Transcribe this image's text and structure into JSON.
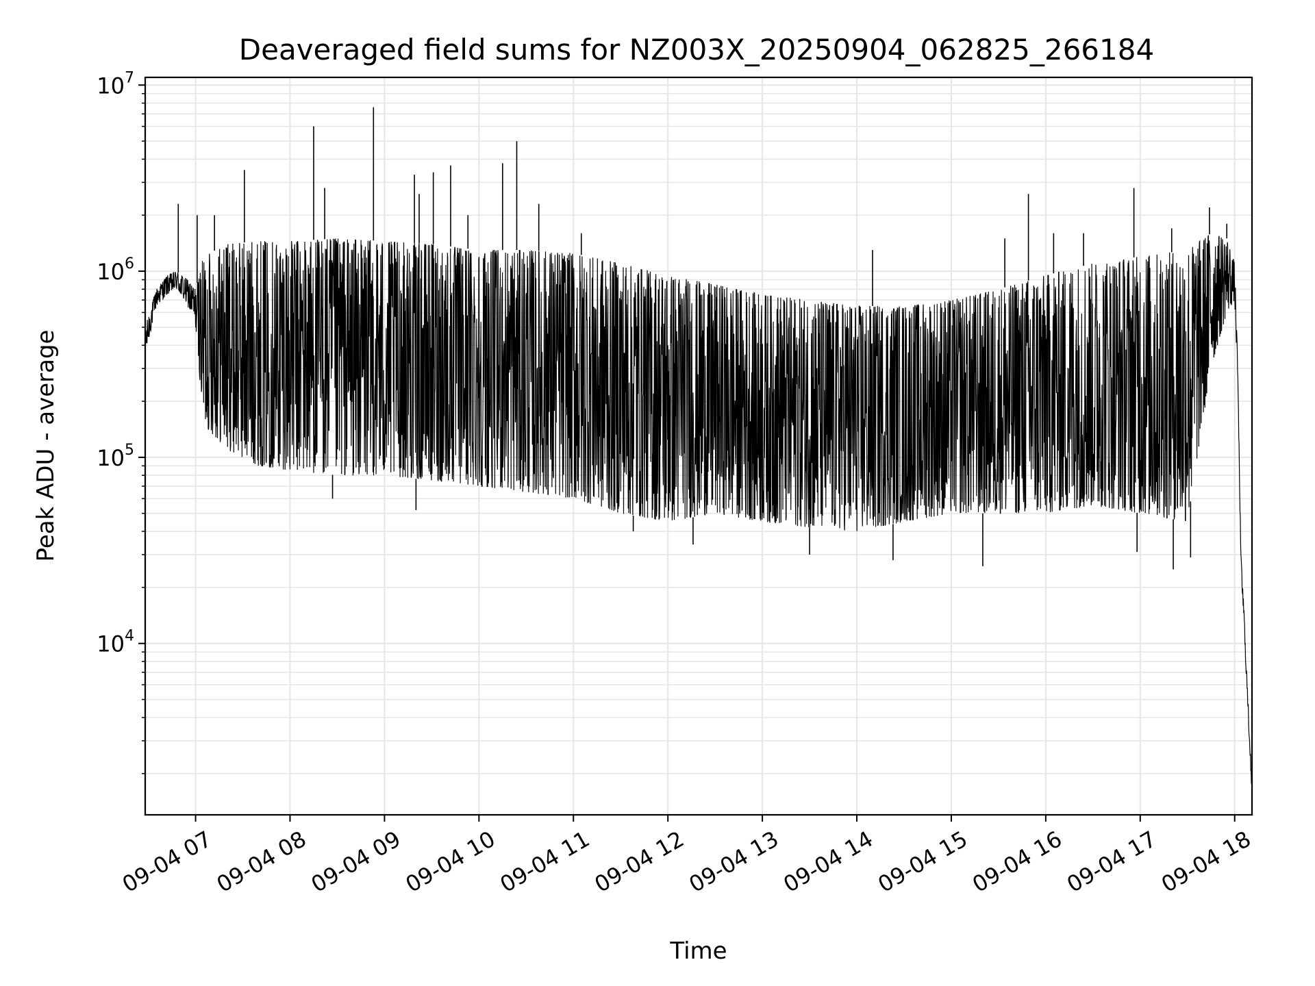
{
  "chart_data": {
    "type": "line",
    "title": "Deaveraged field sums for NZ003X_20250904_062825_266184",
    "xlabel": "Time",
    "ylabel": "Peak ADU - average",
    "yscale": "log",
    "ylim": [
      1200,
      11000000
    ],
    "xlim": [
      "2025-09-04 06:28",
      "2025-09-04 18:11"
    ],
    "grid": true,
    "x_ticks": [
      "09-04 07",
      "09-04 08",
      "09-04 09",
      "09-04 10",
      "09-04 11",
      "09-04 12",
      "09-04 13",
      "09-04 14",
      "09-04 15",
      "09-04 16",
      "09-04 17",
      "09-04 18"
    ],
    "x_tick_times": [
      "2025-09-04 07:00",
      "2025-09-04 08:00",
      "2025-09-04 09:00",
      "2025-09-04 10:00",
      "2025-09-04 11:00",
      "2025-09-04 12:00",
      "2025-09-04 13:00",
      "2025-09-04 14:00",
      "2025-09-04 15:00",
      "2025-09-04 16:00",
      "2025-09-04 17:00",
      "2025-09-04 18:00"
    ],
    "y_ticks": [
      {
        "value": 10000,
        "base": "10",
        "exp": "4"
      },
      {
        "value": 100000,
        "base": "10",
        "exp": "5"
      },
      {
        "value": 1000000,
        "base": "10",
        "exp": "6"
      },
      {
        "value": 10000000,
        "base": "10",
        "exp": "7"
      }
    ],
    "line_color": "#000000",
    "grid_color": "#e6e6e6",
    "series": [
      {
        "x": [
          "2025-09-04 06:28",
          "2025-09-04 06:35",
          "2025-09-04 06:42",
          "2025-09-04 06:48",
          "2025-09-04 06:55",
          "2025-09-04 07:00",
          "2025-09-04 07:05",
          "2025-09-04 07:20",
          "2025-09-04 07:40",
          "2025-09-04 08:00",
          "2025-09-04 08:30",
          "2025-09-04 09:00",
          "2025-09-04 09:30",
          "2025-09-04 10:00",
          "2025-09-04 10:30",
          "2025-09-04 11:00",
          "2025-09-04 11:30",
          "2025-09-04 12:00",
          "2025-09-04 12:30",
          "2025-09-04 13:00",
          "2025-09-04 13:30",
          "2025-09-04 14:00",
          "2025-09-04 14:30",
          "2025-09-04 15:00",
          "2025-09-04 15:30",
          "2025-09-04 16:00",
          "2025-09-04 16:30",
          "2025-09-04 17:00",
          "2025-09-04 17:30",
          "2025-09-04 17:45",
          "2025-09-04 17:55",
          "2025-09-04 18:00",
          "2025-09-04 18:02",
          "2025-09-04 18:04",
          "2025-09-04 18:06",
          "2025-09-04 18:08",
          "2025-09-04 18:11"
        ],
        "high": [
          500000,
          800000,
          950000,
          1000000,
          900000,
          800000,
          1200000,
          1400000,
          1450000,
          1450000,
          1500000,
          1450000,
          1400000,
          1300000,
          1300000,
          1250000,
          1100000,
          950000,
          850000,
          750000,
          700000,
          650000,
          650000,
          700000,
          800000,
          950000,
          1100000,
          1200000,
          1300000,
          1600000,
          1500000,
          1100000,
          300000,
          30000,
          15000,
          6000,
          2000
        ],
        "low": [
          350000,
          650000,
          750000,
          800000,
          650000,
          500000,
          150000,
          110000,
          90000,
          85000,
          80000,
          80000,
          75000,
          70000,
          65000,
          60000,
          50000,
          45000,
          50000,
          45000,
          42000,
          40000,
          45000,
          50000,
          50000,
          50000,
          55000,
          50000,
          45000,
          300000,
          600000,
          700000,
          250000,
          25000,
          12000,
          5000,
          1500
        ]
      }
    ],
    "spikes": [
      {
        "t": "2025-09-04 06:49",
        "v": 2300000
      },
      {
        "t": "2025-09-04 07:01",
        "v": 2000000
      },
      {
        "t": "2025-09-04 07:12",
        "v": 2000000
      },
      {
        "t": "2025-09-04 07:31",
        "v": 3500000
      },
      {
        "t": "2025-09-04 08:15",
        "v": 6000000
      },
      {
        "t": "2025-09-04 08:22",
        "v": 2800000
      },
      {
        "t": "2025-09-04 08:53",
        "v": 7600000
      },
      {
        "t": "2025-09-04 09:19",
        "v": 3300000
      },
      {
        "t": "2025-09-04 09:22",
        "v": 2600000
      },
      {
        "t": "2025-09-04 09:31",
        "v": 3400000
      },
      {
        "t": "2025-09-04 09:42",
        "v": 3700000
      },
      {
        "t": "2025-09-04 09:53",
        "v": 2000000
      },
      {
        "t": "2025-09-04 10:15",
        "v": 3800000
      },
      {
        "t": "2025-09-04 10:24",
        "v": 5000000
      },
      {
        "t": "2025-09-04 10:38",
        "v": 2300000
      },
      {
        "t": "2025-09-04 11:05",
        "v": 1600000
      },
      {
        "t": "2025-09-04 14:10",
        "v": 1300000
      },
      {
        "t": "2025-09-04 15:34",
        "v": 1500000
      },
      {
        "t": "2025-09-04 15:49",
        "v": 2600000
      },
      {
        "t": "2025-09-04 16:05",
        "v": 1600000
      },
      {
        "t": "2025-09-04 16:24",
        "v": 1600000
      },
      {
        "t": "2025-09-04 16:56",
        "v": 2800000
      },
      {
        "t": "2025-09-04 17:20",
        "v": 1700000
      },
      {
        "t": "2025-09-04 17:44",
        "v": 2200000
      },
      {
        "t": "2025-09-04 17:55",
        "v": 1800000
      }
    ],
    "dips": [
      {
        "t": "2025-09-04 08:27",
        "v": 60000
      },
      {
        "t": "2025-09-04 09:20",
        "v": 52000
      },
      {
        "t": "2025-09-04 11:38",
        "v": 40000
      },
      {
        "t": "2025-09-04 12:16",
        "v": 34000
      },
      {
        "t": "2025-09-04 13:30",
        "v": 30000
      },
      {
        "t": "2025-09-04 14:23",
        "v": 28000
      },
      {
        "t": "2025-09-04 15:20",
        "v": 26000
      },
      {
        "t": "2025-09-04 16:58",
        "v": 31000
      },
      {
        "t": "2025-09-04 17:21",
        "v": 25000
      },
      {
        "t": "2025-09-04 17:32",
        "v": 29000
      }
    ]
  }
}
